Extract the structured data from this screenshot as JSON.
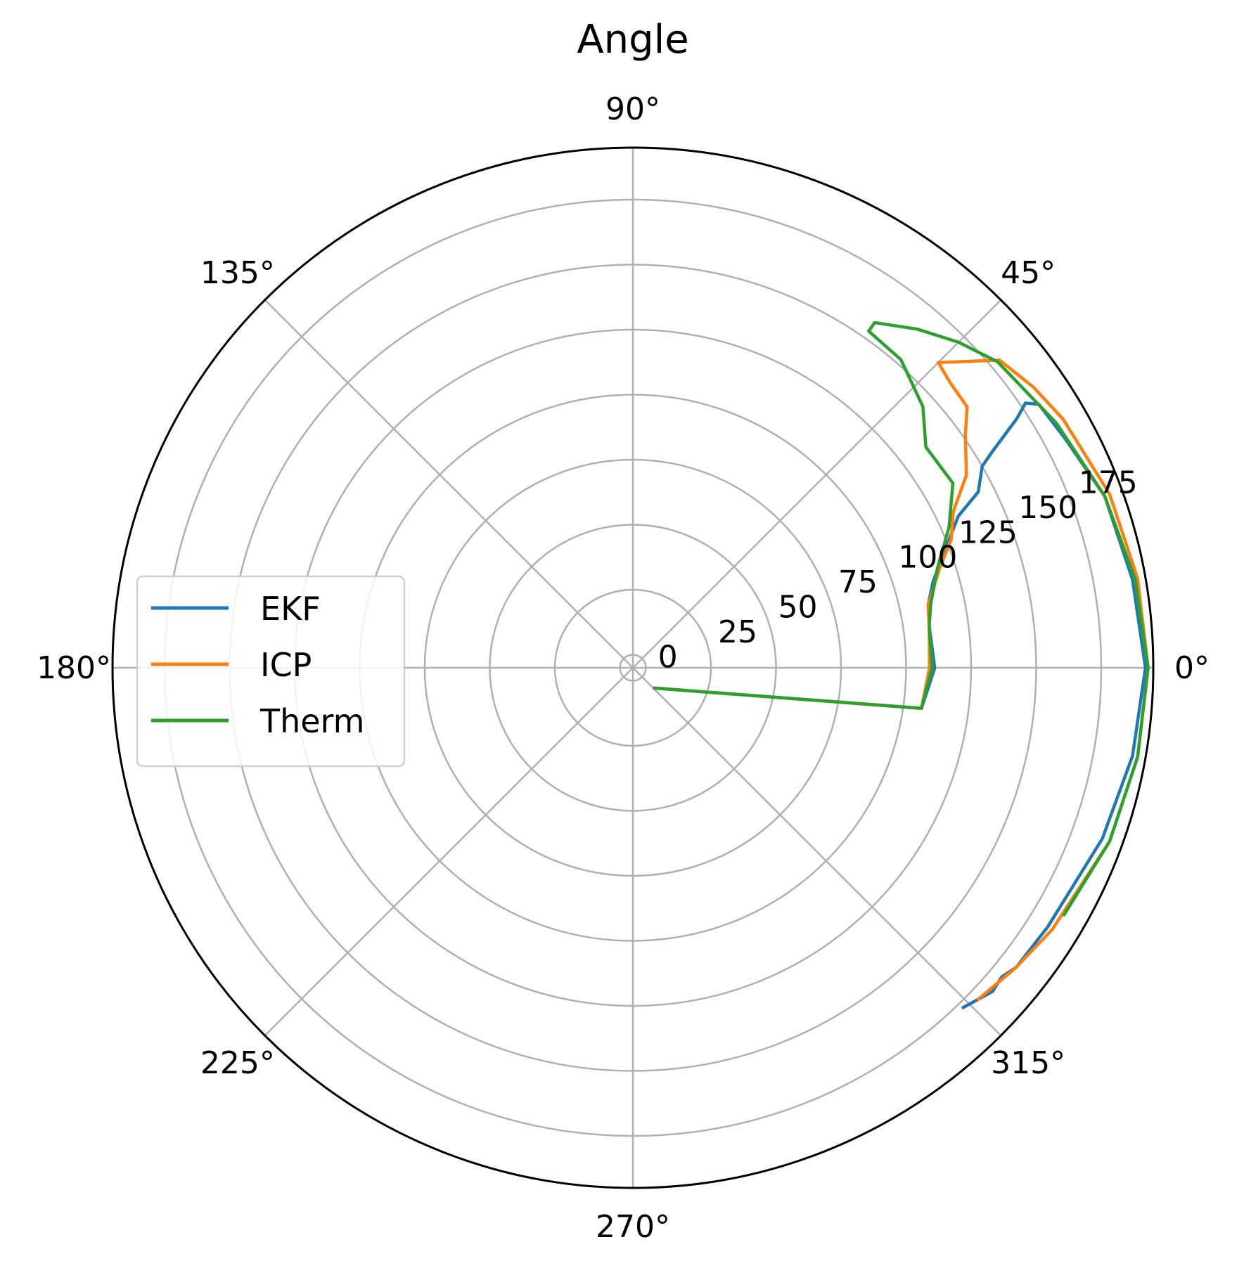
{
  "chart_data": {
    "type": "line",
    "projection": "polar",
    "title": "Angle",
    "angle_unit": "degrees",
    "theta_ticks": [
      0,
      45,
      90,
      135,
      180,
      225,
      270,
      315
    ],
    "theta_tick_labels": [
      "0°",
      "45°",
      "90°",
      "135°",
      "180°",
      "225°",
      "270°",
      "315°"
    ],
    "r_ticks": [
      0,
      25,
      50,
      75,
      100,
      125,
      150,
      175
    ],
    "r_tick_labels": [
      "0",
      "25",
      "50",
      "75",
      "100",
      "125",
      "150",
      "175"
    ],
    "r_label_angle": 22.5,
    "rlim": [
      -5,
      195
    ],
    "grid": true,
    "legend_position": "center-left",
    "series": [
      {
        "name": "EKF",
        "color": "#1f77b4",
        "points": [
          [
            -45,
            6
          ],
          [
            -8,
            107
          ],
          [
            0,
            111
          ],
          [
            8,
            110
          ],
          [
            12,
            111
          ],
          [
            16,
            115
          ],
          [
            19,
            120
          ],
          [
            22,
            126
          ],
          [
            25,
            133
          ],
          [
            27,
            144
          ],
          [
            30,
            150
          ],
          [
            31,
            156
          ],
          [
            33,
            171
          ],
          [
            34,
            177
          ],
          [
            33,
            181
          ],
          [
            28,
            183
          ],
          [
            20,
            188
          ],
          [
            10,
            190
          ],
          [
            0,
            192
          ],
          [
            -10,
            190
          ],
          [
            -20,
            187
          ],
          [
            -32,
            183
          ],
          [
            -38,
            182
          ],
          [
            -40,
            180
          ],
          [
            -42,
            181
          ],
          [
            -46,
            177
          ]
        ]
      },
      {
        "name": "ICP",
        "color": "#ff7f0e",
        "points": [
          [
            -45,
            6
          ],
          [
            -8,
            107
          ],
          [
            0,
            109
          ],
          [
            8,
            110
          ],
          [
            12,
            111
          ],
          [
            18,
            119
          ],
          [
            22,
            127
          ],
          [
            26,
            132
          ],
          [
            30,
            143
          ],
          [
            35,
            151
          ],
          [
            38,
            158
          ],
          [
            42,
            159
          ],
          [
            45,
            161
          ],
          [
            40,
            179
          ],
          [
            35,
            183
          ],
          [
            30,
            186
          ],
          [
            20,
            190
          ],
          [
            10,
            192
          ],
          [
            0,
            193
          ],
          [
            -10,
            192
          ],
          [
            -20,
            190
          ],
          [
            -32,
            185
          ],
          [
            -38,
            182
          ],
          [
            -44,
            179
          ]
        ]
      },
      {
        "name": "Therm",
        "color": "#2ca02c",
        "points": [
          [
            -45,
            6
          ],
          [
            -8,
            107
          ],
          [
            0,
            110
          ],
          [
            8,
            110
          ],
          [
            12,
            112
          ],
          [
            18,
            118
          ],
          [
            24,
            128
          ],
          [
            30,
            137
          ],
          [
            37,
            136
          ],
          [
            42,
            145
          ],
          [
            49,
            152
          ],
          [
            55,
            153
          ],
          [
            55,
            157
          ],
          [
            50,
            165
          ],
          [
            45,
            172
          ],
          [
            40,
            178
          ],
          [
            30,
            183
          ],
          [
            20,
            188
          ],
          [
            10,
            191
          ],
          [
            0,
            193
          ],
          [
            -10,
            192
          ],
          [
            -20,
            190
          ],
          [
            -30,
            186
          ]
        ]
      }
    ]
  }
}
